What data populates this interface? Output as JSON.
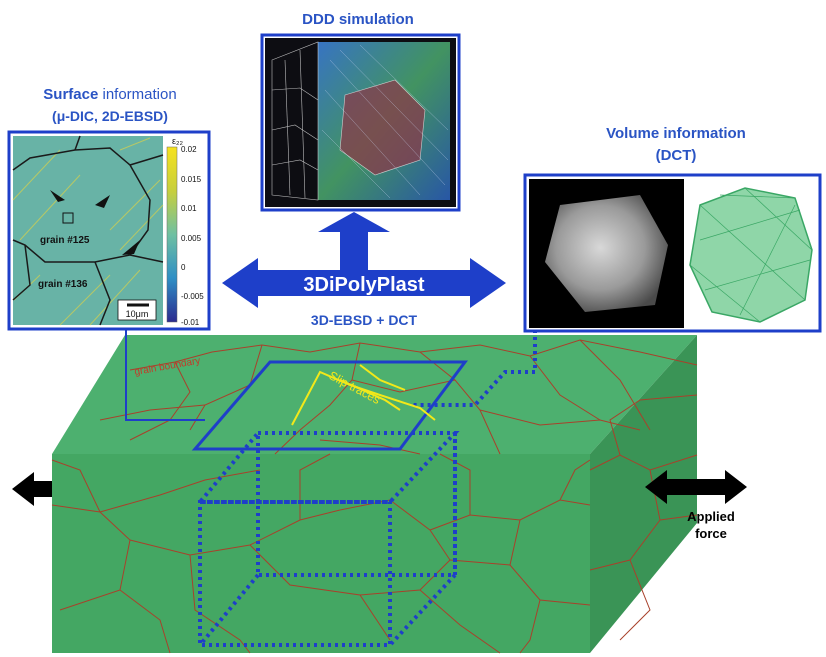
{
  "panels": {
    "ddd": {
      "title": "DDD simulation"
    },
    "surface": {
      "title_bold": "Surface",
      "title_rest": " information",
      "subtitle": "(μ-DIC, 2D-EBSD)",
      "grain_a": "grain #125",
      "grain_b": "grain #136",
      "scale": "10μm",
      "colorbar_title": "ε₂₂",
      "colorbar_ticks": [
        "0.02",
        "0.015",
        "0.01",
        "0.005",
        "0",
        "-0.005",
        "-0.01"
      ]
    },
    "volume": {
      "title": "Volume information",
      "subtitle": "(DCT)"
    }
  },
  "labels": {
    "center_main": "3DiPolyPlast",
    "center_sub": "3D-EBSD + DCT",
    "grain_boundary": "grain boundary",
    "slip_traces": "Slip traces",
    "applied_force_1": "Applied",
    "applied_force_2": "force"
  },
  "colors": {
    "accent_blue": "#1e3fc9",
    "specimen_green": "#44a763",
    "grain_boundary_red": "#a8412b",
    "slip_trace_yellow": "#f2e81a"
  }
}
